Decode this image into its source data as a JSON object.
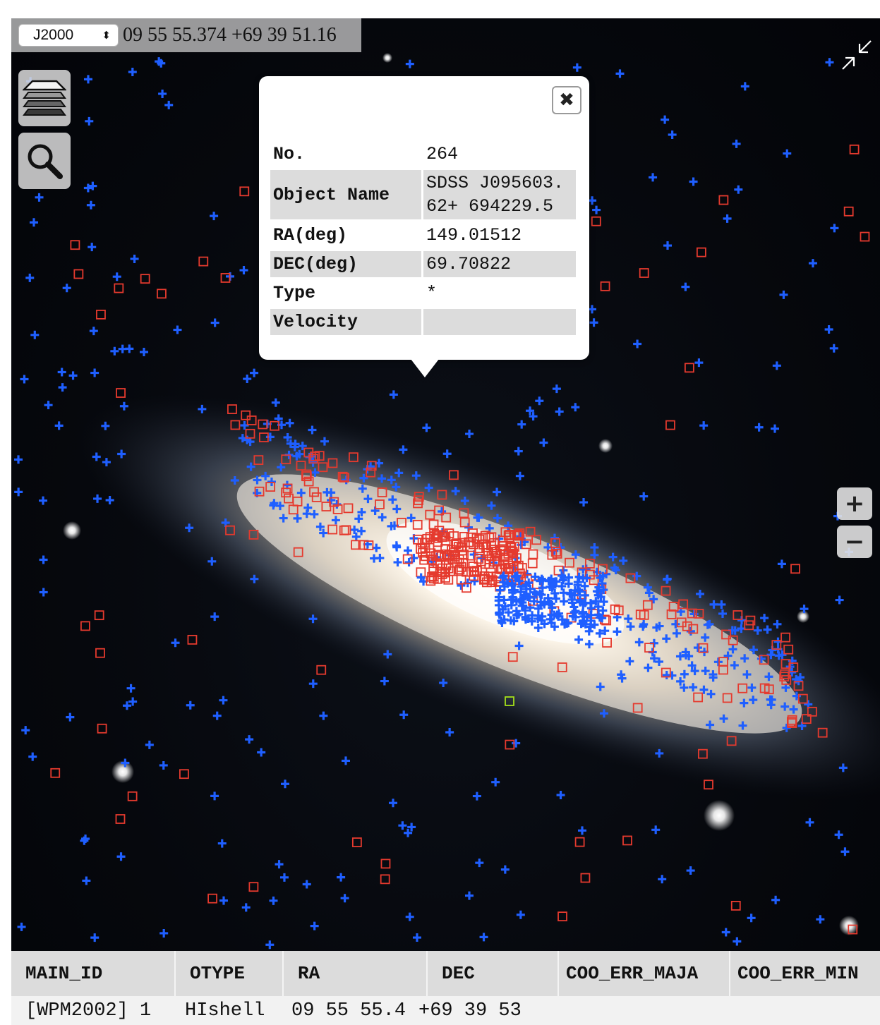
{
  "coordinate_bar": {
    "frame": "J2000",
    "frame_arrows": "⬍",
    "cursor_coordinates": "09 55 55.374 +69 39 51.16"
  },
  "controls": {
    "layers_icon": "layers-icon",
    "search_icon": "search-icon",
    "fullscreen_icon": "collapse-fullscreen-icon",
    "zoom_in_label": "+",
    "zoom_out_label": "−"
  },
  "marker_legend": {
    "cross_color": "#1f5fff",
    "square_color": "#e53a2e",
    "selected_square_color": "#a4e01a"
  },
  "popup": {
    "close_label": "✖",
    "rows": [
      {
        "key": "No.",
        "value": "264"
      },
      {
        "key": "Object Name",
        "value": "SDSS J095603.62+ 694229.5"
      },
      {
        "key": "RA(deg)",
        "value": "149.01512"
      },
      {
        "key": "DEC(deg)",
        "value": "69.70822"
      },
      {
        "key": "Type",
        "value": "*"
      },
      {
        "key": "Velocity",
        "value": ""
      }
    ]
  },
  "result_table": {
    "columns": [
      "MAIN_ID",
      "OTYPE",
      "RA",
      "DEC",
      "COO_ERR_MAJA",
      "COO_ERR_MIN"
    ],
    "rows": [
      [
        "[WPM2002] 1",
        "HIshell",
        "09 55 55.4",
        "+69 39 53",
        "",
        ""
      ]
    ]
  }
}
